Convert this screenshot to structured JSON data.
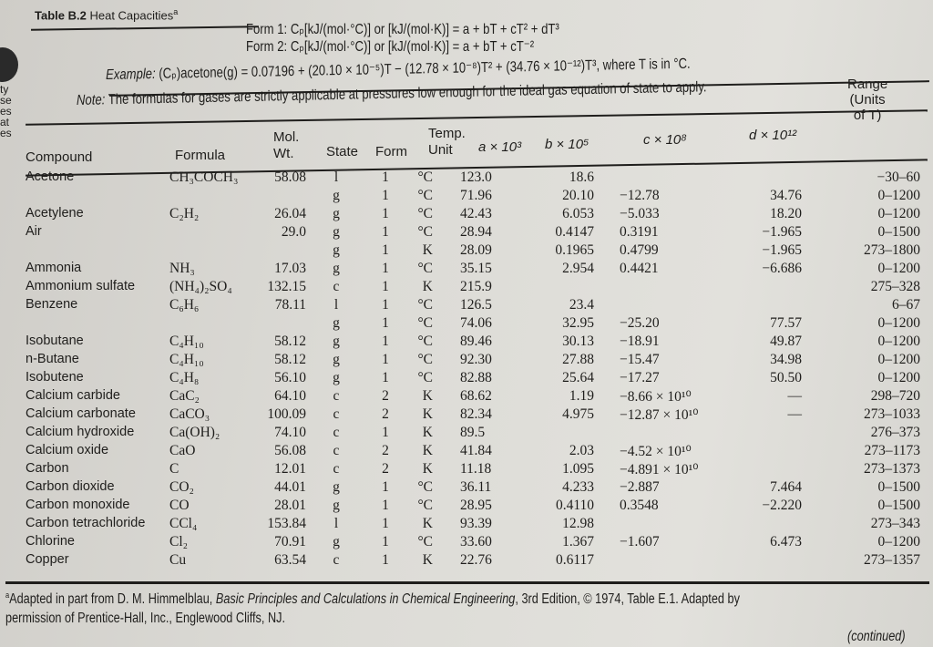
{
  "title": {
    "label": "Table B.2",
    "text": "Heat Capacities",
    "footnote_mark": "a"
  },
  "forms": {
    "form1": "Form 1: Cₚ[kJ/(mol·°C)] or [kJ/(mol·K)] = a + bT + cT² + dT³",
    "form2": "Form 2: Cₚ[kJ/(mol·°C)] or [kJ/(mol·K)] = a + bT + cT⁻²"
  },
  "example": {
    "label": "Example:",
    "text": "(Cₚ)acetone(g) = 0.07196 + (20.10 × 10⁻⁵)T − (12.78 × 10⁻⁸)T² + (34.76 × 10⁻¹²)T³, where T is in °C."
  },
  "note": {
    "label": "Note:",
    "text": "The formulas for gases are strictly applicable at pressures low enough for the ideal gas equation of state to apply."
  },
  "left_margin_fragments": [
    "ty",
    "se",
    "es",
    "at",
    "es"
  ],
  "headers": {
    "compound": "Compound",
    "formula": "Formula",
    "mol": "Mol.",
    "wt": "Wt.",
    "state": "State",
    "form": "Form",
    "temp": "Temp.",
    "unit": "Unit",
    "a": "a × 10³",
    "b": "b × 10⁵",
    "c": "c × 10⁸",
    "d": "d × 10¹²",
    "range1": "Range",
    "range2": "(Units",
    "range3": "of T)"
  },
  "rows": [
    {
      "compound": "Acetone",
      "formula": "CH₃COCH₃",
      "mw": "58.08",
      "state": "l",
      "form": "1",
      "unit": "°C",
      "a": "123.0",
      "b": "18.6",
      "c": "",
      "d": "",
      "range": "−30–60"
    },
    {
      "compound": "",
      "formula": "",
      "mw": "",
      "state": "g",
      "form": "1",
      "unit": "°C",
      "a": "71.96",
      "b": "20.10",
      "c": "−12.78",
      "d": "34.76",
      "range": "0–1200"
    },
    {
      "compound": "Acetylene",
      "formula": "C₂H₂",
      "mw": "26.04",
      "state": "g",
      "form": "1",
      "unit": "°C",
      "a": "42.43",
      "b": "6.053",
      "c": "−5.033",
      "d": "18.20",
      "range": "0–1200"
    },
    {
      "compound": "Air",
      "formula": "",
      "mw": "29.0",
      "state": "g",
      "form": "1",
      "unit": "°C",
      "a": "28.94",
      "b": "0.4147",
      "c": "0.3191",
      "d": "−1.965",
      "range": "0–1500"
    },
    {
      "compound": "",
      "formula": "",
      "mw": "",
      "state": "g",
      "form": "1",
      "unit": "K",
      "a": "28.09",
      "b": "0.1965",
      "c": "0.4799",
      "d": "−1.965",
      "range": "273–1800"
    },
    {
      "compound": "Ammonia",
      "formula": "NH₃",
      "mw": "17.03",
      "state": "g",
      "form": "1",
      "unit": "°C",
      "a": "35.15",
      "b": "2.954",
      "c": "0.4421",
      "d": "−6.686",
      "range": "0–1200"
    },
    {
      "compound": "Ammonium sulfate",
      "formula": "(NH₄)₂SO₄",
      "mw": "132.15",
      "state": "c",
      "form": "1",
      "unit": "K",
      "a": "215.9",
      "b": "",
      "c": "",
      "d": "",
      "range": "275–328"
    },
    {
      "compound": "Benzene",
      "formula": "C₆H₆",
      "mw": "78.11",
      "state": "l",
      "form": "1",
      "unit": "°C",
      "a": "126.5",
      "b": "23.4",
      "c": "",
      "d": "",
      "range": "6–67"
    },
    {
      "compound": "",
      "formula": "",
      "mw": "",
      "state": "g",
      "form": "1",
      "unit": "°C",
      "a": "74.06",
      "b": "32.95",
      "c": "−25.20",
      "d": "77.57",
      "range": "0–1200"
    },
    {
      "compound": "Isobutane",
      "formula": "C₄H₁₀",
      "mw": "58.12",
      "state": "g",
      "form": "1",
      "unit": "°C",
      "a": "89.46",
      "b": "30.13",
      "c": "−18.91",
      "d": "49.87",
      "range": "0–1200"
    },
    {
      "compound": "n-Butane",
      "formula": "C₄H₁₀",
      "mw": "58.12",
      "state": "g",
      "form": "1",
      "unit": "°C",
      "a": "92.30",
      "b": "27.88",
      "c": "−15.47",
      "d": "34.98",
      "range": "0–1200"
    },
    {
      "compound": "Isobutene",
      "formula": "C₄H₈",
      "mw": "56.10",
      "state": "g",
      "form": "1",
      "unit": "°C",
      "a": "82.88",
      "b": "25.64",
      "c": "−17.27",
      "d": "50.50",
      "range": "0–1200"
    },
    {
      "compound": "Calcium carbide",
      "formula": "CaC₂",
      "mw": "64.10",
      "state": "c",
      "form": "2",
      "unit": "K",
      "a": "68.62",
      "b": "1.19",
      "c": "−8.66 × 10¹⁰",
      "d": "—",
      "range": "298–720"
    },
    {
      "compound": "Calcium carbonate",
      "formula": "CaCO₃",
      "mw": "100.09",
      "state": "c",
      "form": "2",
      "unit": "K",
      "a": "82.34",
      "b": "4.975",
      "c": "−12.87 × 10¹⁰",
      "d": "—",
      "range": "273–1033"
    },
    {
      "compound": "Calcium hydroxide",
      "formula": "Ca(OH)₂",
      "mw": "74.10",
      "state": "c",
      "form": "1",
      "unit": "K",
      "a": "89.5",
      "b": "",
      "c": "",
      "d": "",
      "range": "276–373"
    },
    {
      "compound": "Calcium oxide",
      "formula": "CaO",
      "mw": "56.08",
      "state": "c",
      "form": "2",
      "unit": "K",
      "a": "41.84",
      "b": "2.03",
      "c": "−4.52 × 10¹⁰",
      "d": "",
      "range": "273–1173"
    },
    {
      "compound": "Carbon",
      "formula": "C",
      "mw": "12.01",
      "state": "c",
      "form": "2",
      "unit": "K",
      "a": "11.18",
      "b": "1.095",
      "c": "−4.891 × 10¹⁰",
      "d": "",
      "range": "273–1373"
    },
    {
      "compound": "Carbon dioxide",
      "formula": "CO₂",
      "mw": "44.01",
      "state": "g",
      "form": "1",
      "unit": "°C",
      "a": "36.11",
      "b": "4.233",
      "c": "−2.887",
      "d": "7.464",
      "range": "0–1500"
    },
    {
      "compound": "Carbon monoxide",
      "formula": "CO",
      "mw": "28.01",
      "state": "g",
      "form": "1",
      "unit": "°C",
      "a": "28.95",
      "b": "0.4110",
      "c": "0.3548",
      "d": "−2.220",
      "range": "0–1500"
    },
    {
      "compound": "Carbon tetrachloride",
      "formula": "CCl₄",
      "mw": "153.84",
      "state": "l",
      "form": "1",
      "unit": "K",
      "a": "93.39",
      "b": "12.98",
      "c": "",
      "d": "",
      "range": "273–343"
    },
    {
      "compound": "Chlorine",
      "formula": "Cl₂",
      "mw": "70.91",
      "state": "g",
      "form": "1",
      "unit": "°C",
      "a": "33.60",
      "b": "1.367",
      "c": "−1.607",
      "d": "6.473",
      "range": "0–1200"
    },
    {
      "compound": "Copper",
      "formula": "Cu",
      "mw": "63.54",
      "state": "c",
      "form": "1",
      "unit": "K",
      "a": "22.76",
      "b": "0.6117",
      "c": "",
      "d": "",
      "range": "273–1357"
    }
  ],
  "footnote": {
    "mark": "a",
    "pre": "Adapted in part from D. M. Himmelblau, ",
    "book": "Basic Principles and Calculations in Chemical Engineering",
    "post": ", 3rd Edition, © 1974, Table E.1. Adapted by",
    "line2": "permission of Prentice-Hall, Inc., Englewood Cliffs, NJ."
  },
  "continued": "(continued)"
}
